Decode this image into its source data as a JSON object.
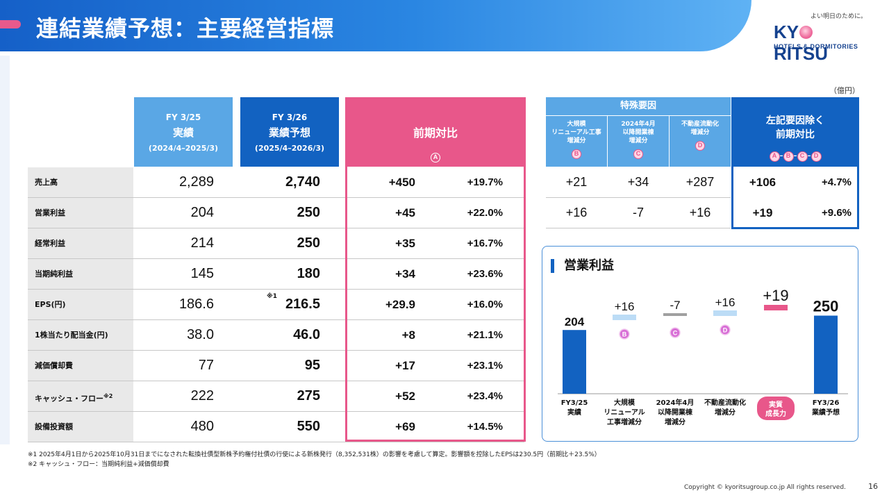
{
  "header": {
    "title": "連結業績予想：主要経営指標"
  },
  "logo": {
    "tagline": "よい明日のために。",
    "name_left": "KY",
    "name_right": "RITSU",
    "sub": "HOTELS & DORMITORIES"
  },
  "unit": "（億円）",
  "columns": {
    "fy25": {
      "line1": "FY 3/25",
      "line2": "実績",
      "line3": "(2024/4–2025/3)"
    },
    "fy26": {
      "line1": "FY 3/26",
      "line2": "業績予想",
      "line3": "(2025/4–2026/3)"
    },
    "diff": {
      "label": "前期対比",
      "marker": "A"
    }
  },
  "rows": [
    {
      "label": "売上高",
      "fy25": "2,289",
      "fy26": "2,740",
      "diff": "+450",
      "pct": "+19.7%"
    },
    {
      "label": "営業利益",
      "fy25": "204",
      "fy26": "250",
      "diff": "+45",
      "pct": "+22.0%"
    },
    {
      "label": "経常利益",
      "fy25": "214",
      "fy26": "250",
      "diff": "+35",
      "pct": "+16.7%"
    },
    {
      "label": "当期純利益",
      "fy25": "145",
      "fy26": "180",
      "diff": "+34",
      "pct": "+23.6%"
    },
    {
      "label": "EPS(円)",
      "fy25": "186.6",
      "fy26": "216.5",
      "note": "※1",
      "diff": "+29.9",
      "pct": "+16.0%"
    },
    {
      "label": "1株当たり配当金(円)",
      "fy25": "38.0",
      "fy26": "46.0",
      "diff": "+8",
      "pct": "+21.1%"
    },
    {
      "label": "減価償却費",
      "fy25": "77",
      "fy26": "95",
      "diff": "+17",
      "pct": "+23.1%"
    },
    {
      "label": "キャッシュ・フロー",
      "label_sup": "※2",
      "fy25": "222",
      "fy26": "275",
      "diff": "+52",
      "pct": "+23.4%"
    },
    {
      "label": "設備投資額",
      "fy25": "480",
      "fy26": "550",
      "diff": "+69",
      "pct": "+14.5%"
    }
  ],
  "special": {
    "title": "特殊要因",
    "factors": [
      {
        "lines": [
          "大規模",
          "リニューアル工事",
          "増減分"
        ],
        "marker": "B"
      },
      {
        "lines": [
          "2024年4月",
          "以降開業棟",
          "増減分"
        ],
        "marker": "C"
      },
      {
        "lines": [
          "不動産流動化",
          "増減分"
        ],
        "marker": "D"
      }
    ],
    "rows": [
      {
        "b": "+21",
        "c": "+34",
        "d": "+287"
      },
      {
        "b": "+16",
        "c": "-7",
        "d": "+16"
      }
    ]
  },
  "excluded": {
    "title_line1": "左記要因除く",
    "title_line2": "前期対比",
    "formula": [
      "A",
      "B",
      "C",
      "D"
    ],
    "rows": [
      {
        "abs": "+106",
        "pct": "+4.7%"
      },
      {
        "abs": "+19",
        "pct": "+9.6%"
      }
    ]
  },
  "panel": {
    "title": "営業利益"
  },
  "chart_data": {
    "type": "bar",
    "title": "営業利益",
    "subtype": "waterfall",
    "categories": [
      "FY3/25 実績",
      "大規模 リニューアル 工事増減分",
      "2024年4月 以降開業棟 増減分",
      "不動産流動化 増減分",
      "実質 成長力",
      "FY3/26 業績予想"
    ],
    "category_lines": [
      [
        "FY3/25",
        "実績"
      ],
      [
        "大規模",
        "リニューアル",
        "工事増減分"
      ],
      [
        "2024年4月",
        "以降開業棟",
        "増減分"
      ],
      [
        "不動産流動化",
        "増減分"
      ],
      [
        "実質",
        "成長力"
      ],
      [
        "FY3/26",
        "業績予想"
      ]
    ],
    "values": [
      204,
      16,
      -7,
      16,
      19,
      250
    ],
    "value_labels": [
      "204",
      "+16",
      "-7",
      "+16",
      "+19",
      "250"
    ],
    "markers": [
      "",
      "B",
      "C",
      "D",
      "",
      ""
    ],
    "colors": {
      "total": "#1262c1",
      "special": "#bcdcf6",
      "negative": "#a0a0a0",
      "growth": "#e8578a"
    }
  },
  "footnotes": [
    "※1 2025年4月1日から2025年10月31日までになされた転換社債型新株予約権付社債の行使による新株発行（8,352,531株）の影響を考慮して算定。影響額を控除したEPSは230.5円（前期比＋23.5%）",
    "※2 キャッシュ・フロー：当期純利益+減価償却費"
  ],
  "copyright": "Copyright © kyoritsugroup.co.jp All rights reserved.",
  "page_number": "16"
}
